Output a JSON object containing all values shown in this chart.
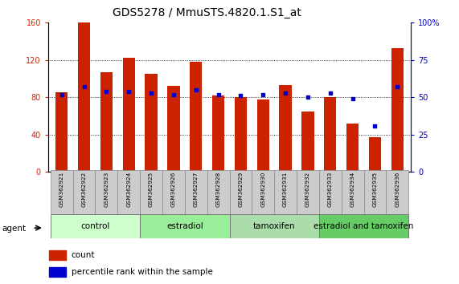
{
  "title": "GDS5278 / MmuSTS.4820.1.S1_at",
  "samples": [
    "GSM362921",
    "GSM362922",
    "GSM362923",
    "GSM362924",
    "GSM362925",
    "GSM362926",
    "GSM362927",
    "GSM362928",
    "GSM362929",
    "GSM362930",
    "GSM362931",
    "GSM362932",
    "GSM362933",
    "GSM362934",
    "GSM362935",
    "GSM362936"
  ],
  "bar_values": [
    85,
    160,
    107,
    122,
    105,
    92,
    118,
    82,
    80,
    78,
    93,
    65,
    80,
    52,
    37,
    133
  ],
  "percentile_values": [
    52,
    57,
    54,
    54,
    53,
    52,
    55,
    52,
    51,
    52,
    53,
    50,
    53,
    49,
    31,
    57
  ],
  "bar_color": "#cc2200",
  "dot_color": "#0000cc",
  "ylim_left": [
    0,
    160
  ],
  "ylim_right": [
    0,
    100
  ],
  "yticks_left": [
    0,
    40,
    80,
    120,
    160
  ],
  "yticks_right": [
    0,
    25,
    50,
    75,
    100
  ],
  "yticklabels_right": [
    "0",
    "25",
    "50",
    "75",
    "100%"
  ],
  "groups": [
    {
      "label": "control",
      "start": 0,
      "end": 4,
      "color": "#ccffcc"
    },
    {
      "label": "estradiol",
      "start": 4,
      "end": 8,
      "color": "#99ee99"
    },
    {
      "label": "tamoxifen",
      "start": 8,
      "end": 12,
      "color": "#aaddaa"
    },
    {
      "label": "estradiol and tamoxifen",
      "start": 12,
      "end": 16,
      "color": "#66cc66"
    }
  ],
  "agent_label": "agent",
  "bar_color_legend": "#cc2200",
  "dot_color_legend": "#0000cc",
  "count_label": "count",
  "percentile_label": "percentile rank within the sample",
  "background_color": "#ffffff",
  "bar_width": 0.55,
  "title_fontsize": 10,
  "tick_fontsize": 7,
  "group_label_fontsize": 7.5,
  "legend_fontsize": 7.5
}
